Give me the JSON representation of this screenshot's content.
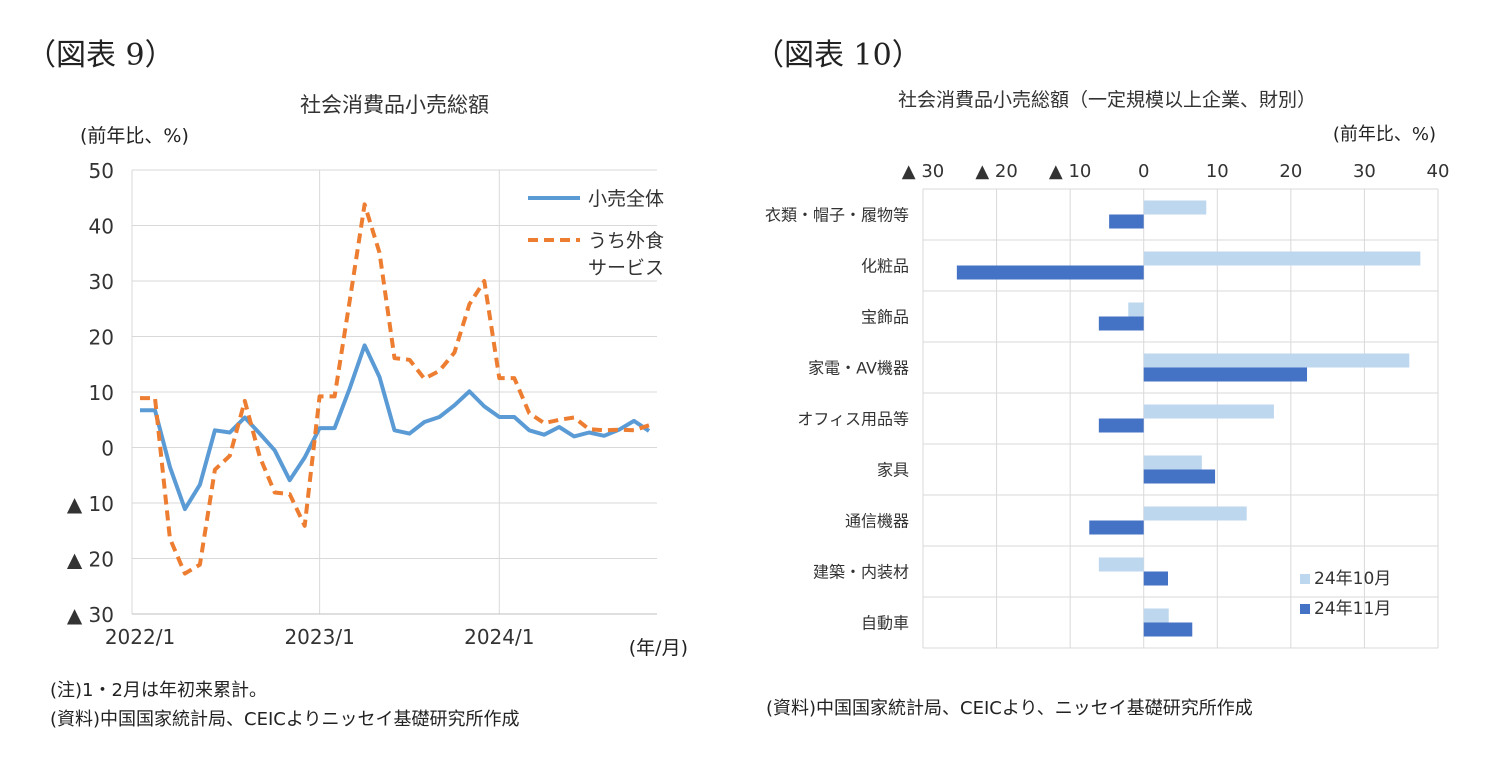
{
  "fig9": {
    "label": "（図表 9）",
    "note": "(注)1・2月は年初来累計。",
    "source": "(資料)中国国家統計局、CEICよりニッセイ基礎研究所作成"
  },
  "fig10": {
    "label": "（図表 10）",
    "source": "(資料)中国国家統計局、CEICより、ニッセイ基礎研究所作成"
  },
  "chart_data": [
    {
      "type": "line",
      "title": "社会消費品小売総額",
      "ylabel": "(前年比、%)",
      "xlabel": "(年/月)",
      "ylim": [
        -30,
        50
      ],
      "yticks": [
        -30,
        -20,
        -10,
        0,
        10,
        20,
        30,
        40,
        50
      ],
      "ytick_labels": [
        "▲ 30",
        "▲ 20",
        "▲ 10",
        "0",
        "10",
        "20",
        "30",
        "40",
        "50"
      ],
      "x_tick_labels": [
        "2022/1",
        "2023/1",
        "2024/1"
      ],
      "x_tick_index": [
        0,
        12,
        24
      ],
      "x_count": 35,
      "legend_position": "top-right",
      "series": [
        {
          "name": "小売全体",
          "color": "#5b9bd5",
          "dash": "solid",
          "values": [
            6.7,
            6.7,
            -3.5,
            -11.1,
            -6.7,
            3.1,
            2.7,
            5.4,
            2.5,
            -0.5,
            -5.9,
            -1.8,
            3.5,
            3.5,
            10.6,
            18.4,
            12.7,
            3.1,
            2.5,
            4.6,
            5.5,
            7.6,
            10.1,
            7.4,
            5.5,
            5.5,
            3.1,
            2.3,
            3.7,
            2.0,
            2.7,
            2.1,
            3.2,
            4.8,
            3.0
          ]
        },
        {
          "name": "うち外食サービス",
          "name_lines": [
            "うち外食",
            "サービス"
          ],
          "color": "#ed7d31",
          "dash": "dashed",
          "values": [
            8.9,
            8.9,
            -16.4,
            -22.7,
            -21.1,
            -4.0,
            -1.5,
            8.4,
            -1.7,
            -8.1,
            -8.4,
            -14.1,
            9.2,
            9.2,
            26.3,
            43.8,
            35.1,
            16.1,
            15.8,
            12.4,
            13.8,
            17.1,
            25.8,
            30.0,
            12.5,
            12.5,
            6.2,
            4.4,
            5.0,
            5.4,
            3.3,
            3.1,
            3.2,
            3.1,
            4.0
          ]
        }
      ]
    },
    {
      "type": "bar",
      "orientation": "horizontal",
      "title": "社会消費品小売総額（一定規模以上企業、財別）",
      "unit_label": "(前年比、%)",
      "xlim": [
        -30,
        40
      ],
      "xticks": [
        -30,
        -20,
        -10,
        0,
        10,
        20,
        30,
        40
      ],
      "xtick_labels": [
        "▲ 30",
        "▲ 20",
        "▲ 10",
        "0",
        "10",
        "20",
        "30",
        "40"
      ],
      "categories": [
        "衣類・帽子・履物等",
        "化粧品",
        "宝飾品",
        "家電・AV機器",
        "オフィス用品等",
        "家具",
        "通信機器",
        "建築・内装材",
        "自動車"
      ],
      "legend_position": "bottom-right",
      "series": [
        {
          "name": "24年10月",
          "color": "#bdd7ee",
          "values": [
            8.5,
            37.6,
            -2.1,
            36.1,
            17.7,
            7.9,
            14.0,
            -6.1,
            3.4
          ]
        },
        {
          "name": "24年11月",
          "color": "#4472c4",
          "values": [
            -4.7,
            -25.4,
            -6.1,
            22.2,
            -6.1,
            9.7,
            -7.4,
            3.3,
            6.6
          ]
        }
      ]
    }
  ]
}
